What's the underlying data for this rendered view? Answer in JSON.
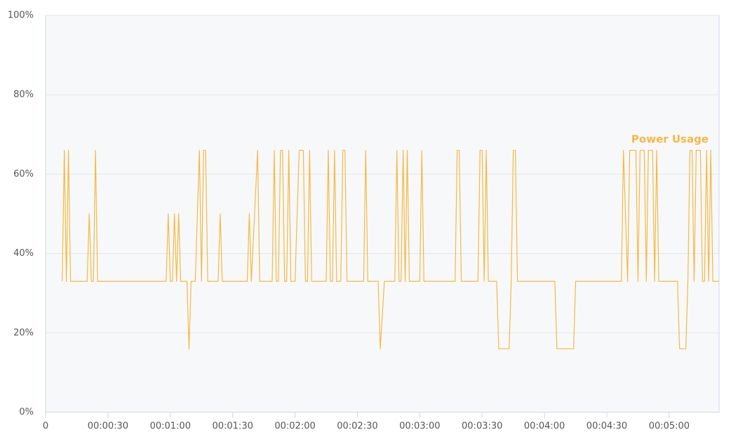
{
  "chart_data": {
    "type": "line",
    "x": [
      8,
      9,
      10,
      11,
      12,
      20,
      21,
      22,
      23,
      24,
      25,
      58,
      59,
      60,
      61,
      62,
      63,
      64,
      65,
      68,
      69,
      70,
      72,
      74,
      75,
      76,
      77,
      78,
      83,
      84,
      85,
      97,
      98,
      99,
      102,
      103,
      109,
      110,
      111,
      112,
      113,
      114,
      115,
      116,
      117,
      118,
      120,
      122,
      124,
      125,
      126,
      127,
      128,
      135,
      136,
      137,
      138,
      139,
      140,
      142,
      143,
      144,
      145,
      153,
      154,
      155,
      160,
      161,
      163,
      168,
      169,
      170,
      171,
      172,
      173,
      174,
      175,
      180,
      181,
      182,
      197,
      198,
      199,
      200,
      208,
      209,
      210,
      211,
      212,
      213,
      217,
      218,
      223,
      224,
      225,
      226,
      227,
      245,
      246,
      254,
      255,
      277,
      278,
      280,
      281,
      284,
      285,
      286,
      288,
      289,
      290,
      292,
      293,
      294,
      295,
      304,
      305,
      308,
      309,
      310,
      311,
      312,
      313,
      315,
      316,
      317,
      318,
      319,
      320,
      321,
      324
    ],
    "series": [
      {
        "name": "Power Usage",
        "color": "#f5b942",
        "values": [
          33,
          66,
          33,
          66,
          33,
          33,
          50,
          33,
          33,
          66,
          33,
          33,
          50,
          33,
          33,
          50,
          33,
          50,
          33,
          33,
          16,
          33,
          33,
          66,
          33,
          66,
          66,
          33,
          33,
          50,
          33,
          33,
          50,
          33,
          66,
          33,
          33,
          66,
          33,
          33,
          66,
          66,
          33,
          33,
          66,
          33,
          33,
          66,
          66,
          33,
          33,
          66,
          33,
          33,
          66,
          33,
          33,
          66,
          33,
          33,
          66,
          66,
          33,
          33,
          66,
          33,
          33,
          16,
          33,
          33,
          66,
          33,
          33,
          66,
          33,
          66,
          33,
          33,
          66,
          33,
          33,
          66,
          66,
          33,
          33,
          66,
          66,
          33,
          66,
          33,
          33,
          16,
          16,
          33,
          66,
          66,
          33,
          33,
          16,
          16,
          33,
          33,
          66,
          33,
          66,
          66,
          33,
          66,
          66,
          33,
          66,
          66,
          33,
          66,
          33,
          33,
          16,
          16,
          33,
          66,
          66,
          33,
          66,
          66,
          33,
          33,
          66,
          33,
          66,
          33,
          33
        ]
      }
    ],
    "xlim": [
      0,
      324
    ],
    "xticks": [
      0,
      {
        "value": 30,
        "label": "00:00:30"
      },
      {
        "value": 60,
        "label": "00:01:00"
      },
      {
        "value": 90,
        "label": "00:01:30"
      },
      {
        "value": 120,
        "label": "00:02:00"
      },
      {
        "value": 150,
        "label": "00:02:30"
      },
      {
        "value": 180,
        "label": "00:03:00"
      },
      {
        "value": 210,
        "label": "00:03:30"
      },
      {
        "value": 240,
        "label": "00:04:00"
      },
      {
        "value": 270,
        "label": "00:04:30"
      },
      {
        "value": 300,
        "label": "00:05:00"
      }
    ],
    "ylim": [
      0,
      100
    ],
    "yticks": [
      {
        "value": 0,
        "label": "0%"
      },
      {
        "value": 20,
        "label": "20%"
      },
      {
        "value": 40,
        "label": "40%"
      },
      {
        "value": 60,
        "label": "60%"
      },
      {
        "value": 80,
        "label": "80%"
      },
      {
        "value": 100,
        "label": "100%"
      }
    ],
    "grid": true
  }
}
